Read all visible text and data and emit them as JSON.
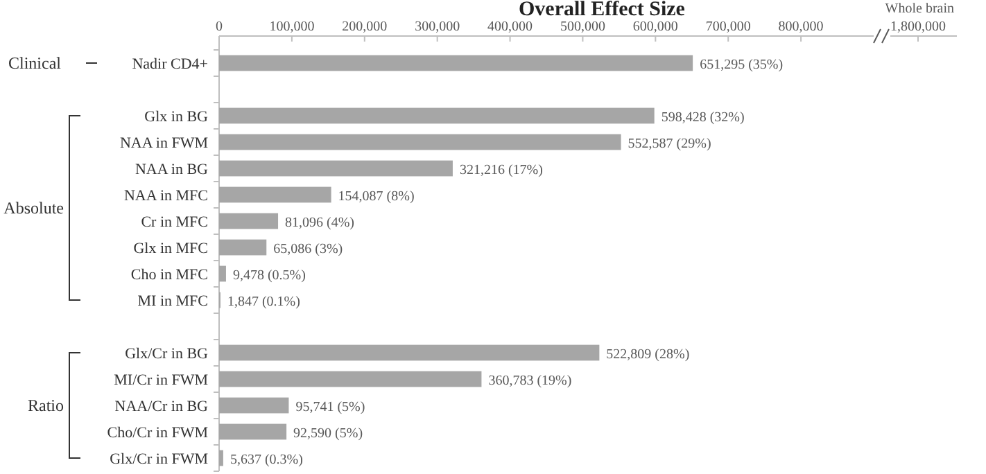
{
  "chart_data": {
    "type": "bar",
    "orientation": "horizontal",
    "xlabel": "Overall Effect Size",
    "categories": [
      "Nadir CD4+",
      null,
      "Glx in BG",
      "NAA in FWM",
      "NAA in BG",
      "NAA in MFC",
      "Cr in MFC",
      "Glx in MFC",
      "Cho in MFC",
      "MI in MFC",
      null,
      "Glx/Cr in BG",
      "MI/Cr in FWM",
      "NAA/Cr in BG",
      "Cho/Cr in FWM",
      "Glx/Cr in FWM"
    ],
    "values": [
      651295,
      null,
      598428,
      552587,
      321216,
      154087,
      81096,
      65086,
      9478,
      1847,
      null,
      522809,
      360783,
      95741,
      92590,
      5637
    ],
    "value_labels": [
      "651,295 (35%)",
      null,
      "598,428 (32%)",
      "552,587 (29%)",
      "321,216 (17%)",
      "154,087 (8%)",
      "81,096 (4%)",
      "65,086 (3%)",
      "9,478 (0.5%)",
      "1,847 (0.1%)",
      null,
      "522,809 (28%)",
      "360,783 (19%)",
      "95,741 (5%)",
      "92,590 (5%)",
      "5,637 (0.3%)"
    ],
    "color": "#a6a6a6",
    "xlim": [
      0,
      900000
    ],
    "xticks": [
      {
        "value": 0,
        "label": "0"
      },
      {
        "value": 100000,
        "label": "100,000"
      },
      {
        "value": 200000,
        "label": "200,000"
      },
      {
        "value": 300000,
        "label": "300,000"
      },
      {
        "value": 400000,
        "label": "400,000"
      },
      {
        "value": 500000,
        "label": "500,000"
      },
      {
        "value": 600000,
        "label": "600,000"
      },
      {
        "value": 700000,
        "label": "700,000"
      },
      {
        "value": 800000,
        "label": "800,000"
      }
    ],
    "annotations": [
      "Clinical",
      "Absolute",
      "Ratio",
      "Whole brain",
      "1,800,000"
    ]
  }
}
